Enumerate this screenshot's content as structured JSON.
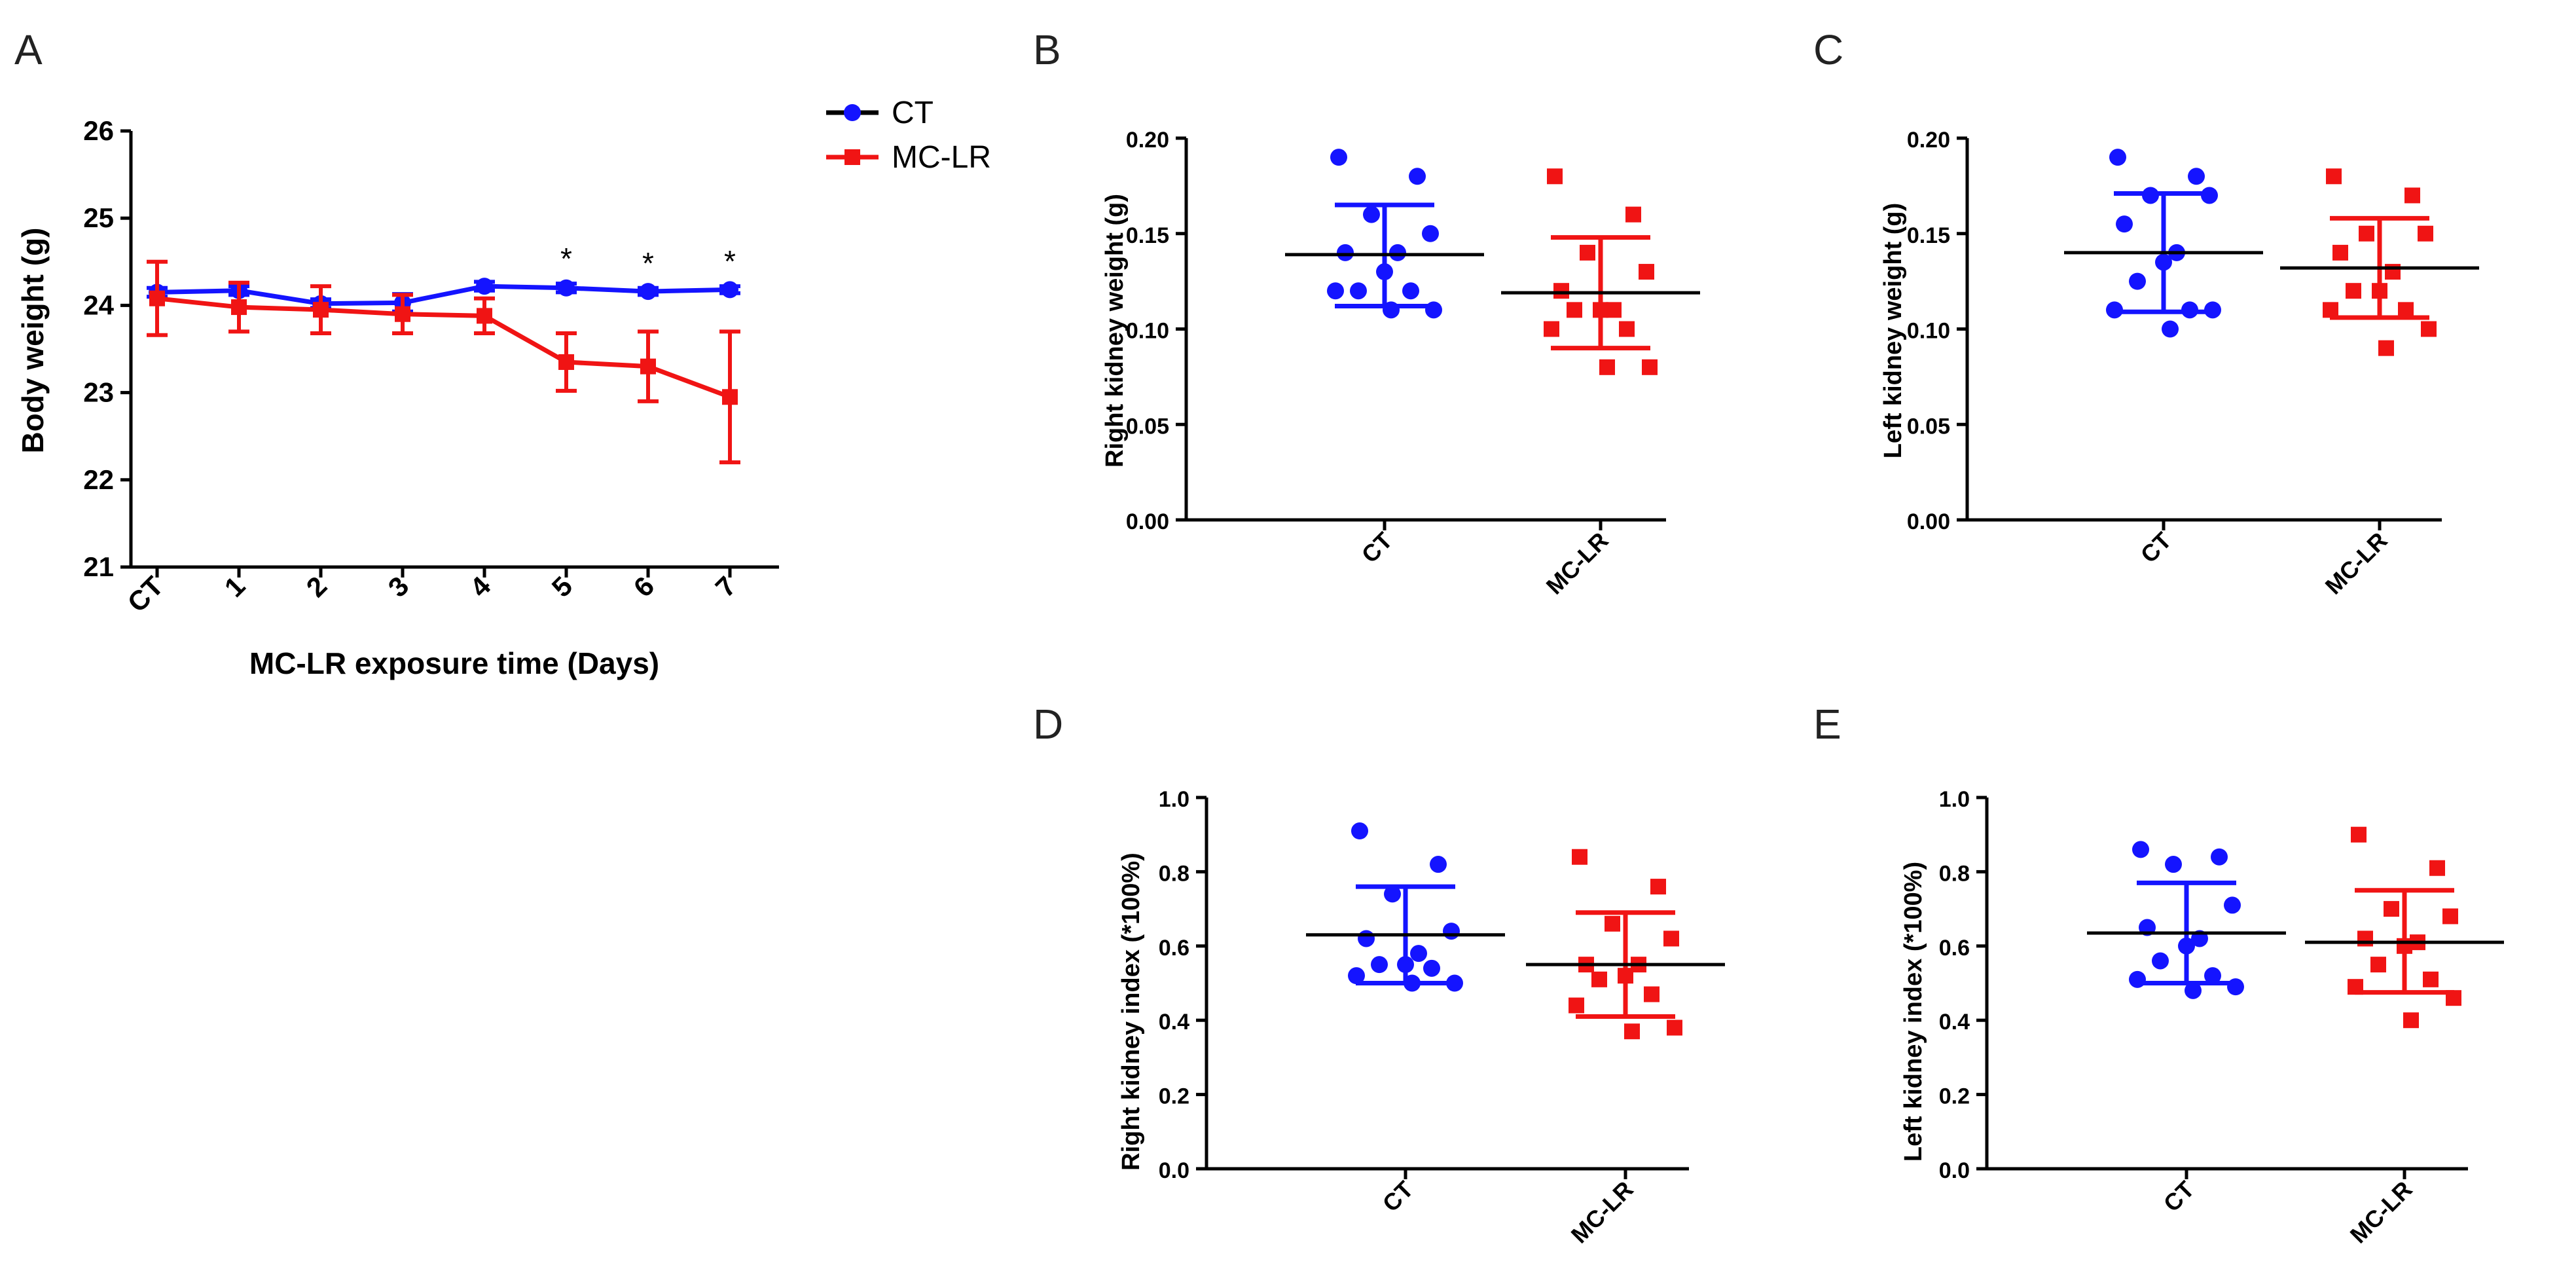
{
  "colors": {
    "ct": "#1414ff",
    "mclr": "#f01414",
    "axis": "#000000",
    "mean": "#000000"
  },
  "legend": {
    "entries": [
      "CT",
      "MC-LR"
    ]
  },
  "chart_data": [
    {
      "id": "A",
      "panel_label": "A",
      "type": "line",
      "xlabel": "MC-LR exposure time (Days)",
      "ylabel": "Body weight (g)",
      "ylim": [
        21,
        26
      ],
      "yticks": [
        "21",
        "22",
        "23",
        "24",
        "25",
        "26"
      ],
      "categories": [
        "CT",
        "1",
        "2",
        "3",
        "4",
        "5",
        "6",
        "7"
      ],
      "series": [
        {
          "name": "CT",
          "marker": "circle",
          "values": [
            24.15,
            24.17,
            24.02,
            24.03,
            24.22,
            24.2,
            24.16,
            24.18
          ],
          "errors": [
            0.05,
            0.05,
            0.05,
            0.1,
            0.05,
            0.05,
            0.04,
            0.04
          ]
        },
        {
          "name": "MC-LR",
          "marker": "square",
          "values": [
            24.08,
            23.98,
            23.95,
            23.9,
            23.88,
            23.35,
            23.3,
            22.95
          ],
          "errors": [
            0.42,
            0.28,
            0.27,
            0.22,
            0.2,
            0.33,
            0.4,
            0.75
          ]
        }
      ],
      "annotations": [
        {
          "category": "5",
          "text": "*"
        },
        {
          "category": "6",
          "text": "*"
        },
        {
          "category": "7",
          "text": "*"
        }
      ]
    },
    {
      "id": "B",
      "panel_label": "B",
      "type": "scatter",
      "ylabel": "Right kidney weight (g)",
      "ylim": [
        0,
        0.2
      ],
      "yticks": [
        "0.00",
        "0.05",
        "0.10",
        "0.15",
        "0.20"
      ],
      "categories": [
        "CT",
        "MC-LR"
      ],
      "groups": [
        {
          "name": "CT",
          "marker": "circle",
          "mean": 0.139,
          "sd_low": 0.112,
          "sd_high": 0.165,
          "points": [
            0.19,
            0.18,
            0.16,
            0.15,
            0.14,
            0.14,
            0.13,
            0.12,
            0.12,
            0.12,
            0.11,
            0.11
          ]
        },
        {
          "name": "MC-LR",
          "marker": "square",
          "mean": 0.119,
          "sd_low": 0.09,
          "sd_high": 0.148,
          "points": [
            0.18,
            0.16,
            0.14,
            0.13,
            0.12,
            0.11,
            0.11,
            0.11,
            0.1,
            0.1,
            0.08,
            0.08
          ]
        }
      ]
    },
    {
      "id": "C",
      "panel_label": "C",
      "type": "scatter",
      "ylabel": "Left kidney weight (g)",
      "ylim": [
        0,
        0.2
      ],
      "yticks": [
        "0.00",
        "0.05",
        "0.10",
        "0.15",
        "0.20"
      ],
      "categories": [
        "CT",
        "MC-LR"
      ],
      "groups": [
        {
          "name": "CT",
          "marker": "circle",
          "mean": 0.14,
          "sd_low": 0.109,
          "sd_high": 0.171,
          "points": [
            0.19,
            0.18,
            0.17,
            0.17,
            0.155,
            0.14,
            0.135,
            0.125,
            0.11,
            0.11,
            0.11,
            0.1
          ]
        },
        {
          "name": "MC-LR",
          "marker": "square",
          "mean": 0.132,
          "sd_low": 0.106,
          "sd_high": 0.158,
          "points": [
            0.18,
            0.17,
            0.15,
            0.15,
            0.14,
            0.13,
            0.12,
            0.12,
            0.11,
            0.11,
            0.1,
            0.09
          ]
        }
      ]
    },
    {
      "id": "D",
      "panel_label": "D",
      "type": "scatter",
      "ylabel": "Right kidney index (*100%)",
      "ylim": [
        0,
        1
      ],
      "yticks": [
        "0.0",
        "0.2",
        "0.4",
        "0.6",
        "0.8",
        "1.0"
      ],
      "categories": [
        "CT",
        "MC-LR"
      ],
      "groups": [
        {
          "name": "CT",
          "marker": "circle",
          "mean": 0.63,
          "sd_low": 0.5,
          "sd_high": 0.76,
          "points": [
            0.91,
            0.82,
            0.74,
            0.64,
            0.62,
            0.58,
            0.55,
            0.55,
            0.54,
            0.52,
            0.5,
            0.5
          ]
        },
        {
          "name": "MC-LR",
          "marker": "square",
          "mean": 0.55,
          "sd_low": 0.41,
          "sd_high": 0.69,
          "points": [
            0.84,
            0.76,
            0.66,
            0.62,
            0.55,
            0.55,
            0.52,
            0.51,
            0.47,
            0.44,
            0.38,
            0.37
          ]
        }
      ]
    },
    {
      "id": "E",
      "panel_label": "E",
      "type": "scatter",
      "ylabel": "Left kidney index (*100%)",
      "ylim": [
        0,
        1
      ],
      "yticks": [
        "0.0",
        "0.2",
        "0.4",
        "0.6",
        "0.8",
        "1.0"
      ],
      "categories": [
        "CT",
        "MC-LR"
      ],
      "groups": [
        {
          "name": "CT",
          "marker": "circle",
          "mean": 0.635,
          "sd_low": 0.5,
          "sd_high": 0.77,
          "points": [
            0.86,
            0.84,
            0.82,
            0.71,
            0.65,
            0.62,
            0.6,
            0.56,
            0.52,
            0.51,
            0.49,
            0.48
          ]
        },
        {
          "name": "MC-LR",
          "marker": "square",
          "mean": 0.61,
          "sd_low": 0.475,
          "sd_high": 0.75,
          "points": [
            0.9,
            0.81,
            0.7,
            0.68,
            0.62,
            0.61,
            0.6,
            0.55,
            0.51,
            0.49,
            0.46,
            0.4
          ]
        }
      ]
    }
  ]
}
